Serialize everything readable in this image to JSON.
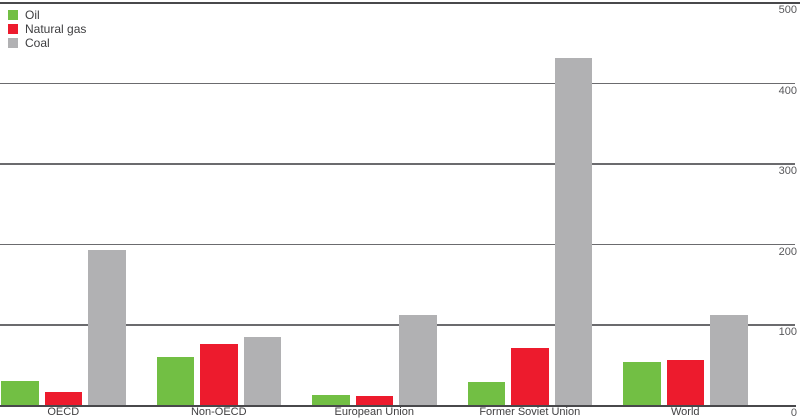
{
  "chart_data": {
    "type": "bar",
    "title": "",
    "categories": [
      "OECD",
      "Non-OECD",
      "European Union",
      "Former Soviet Union",
      "World"
    ],
    "series": [
      {
        "name": "Oil",
        "color": "#72bf44",
        "values": [
          30,
          60,
          12,
          28,
          53
        ]
      },
      {
        "name": "Natural gas",
        "color": "#ed1b2d",
        "values": [
          16,
          76,
          11,
          71,
          56
        ]
      },
      {
        "name": "Coal",
        "color": "#b1b1b3",
        "values": [
          192,
          84,
          112,
          430,
          112
        ]
      }
    ],
    "xlabel": "",
    "ylabel": "",
    "ylim": [
      0,
      500
    ],
    "yticks": [
      500,
      400,
      300,
      200,
      100,
      0
    ],
    "axis_side": "right",
    "grid": true,
    "legend_position": "top-left"
  },
  "colors": {
    "oil": "#72bf44",
    "natural_gas": "#ed1b2d",
    "coal": "#b1b1b3",
    "gridline": "#6b6b6e",
    "axis_line": "#48484b",
    "tick_text": "#58585b",
    "category_text": "#414042"
  }
}
